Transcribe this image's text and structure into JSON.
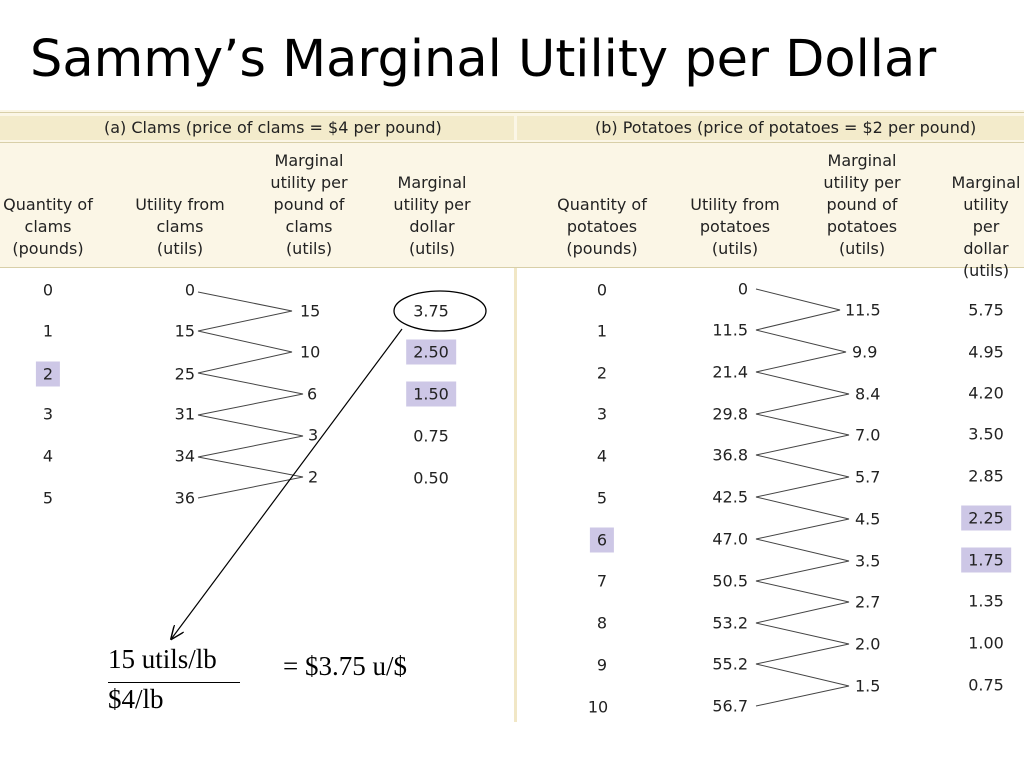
{
  "title": "Sammy’s Marginal Utility per Dollar",
  "clams": {
    "section_label": "(a) Clams (price of clams = $4 per pound)",
    "headers": [
      "Quantity of\nclams\n(pounds)",
      "Utility from\nclams\n(utils)",
      "Marginal\nutility per\npound of\nclams\n(utils)",
      "Marginal\nutility per\ndollar\n(utils)"
    ],
    "quantities": [
      "0",
      "1",
      "2",
      "3",
      "4",
      "5"
    ],
    "utility": [
      "0",
      "15",
      "25",
      "31",
      "34",
      "36"
    ],
    "mu_per_pound": [
      "15",
      "10",
      "6",
      "3",
      "2"
    ],
    "mu_per_dollar": [
      "3.75",
      "2.50",
      "1.50",
      "0.75",
      "0.50"
    ]
  },
  "potatoes": {
    "section_label": "(b) Potatoes (price of potatoes = $2 per pound)",
    "headers": [
      "Quantity of\npotatoes\n(pounds)",
      "Utility from\npotatoes\n(utils)",
      "Marginal\nutility per\npound of\npotatoes\n(utils)",
      "Marginal\nutility per\ndollar\n(utils)"
    ],
    "quantities": [
      "0",
      "1",
      "2",
      "3",
      "4",
      "5",
      "6",
      "7",
      "8",
      "9",
      "10"
    ],
    "utility": [
      "0",
      "11.5",
      "21.4",
      "29.8",
      "36.8",
      "42.5",
      "47.0",
      "50.5",
      "53.2",
      "55.2",
      "56.7"
    ],
    "mu_per_pound": [
      "11.5",
      "9.9",
      "8.4",
      "7.0",
      "5.7",
      "4.5",
      "3.5",
      "2.7",
      "2.0",
      "1.5"
    ],
    "mu_per_dollar": [
      "5.75",
      "4.95",
      "4.20",
      "3.50",
      "2.85",
      "2.25",
      "1.75",
      "1.35",
      "1.00",
      "0.75"
    ]
  },
  "annotation": {
    "numerator": "15 utils/lb",
    "denominator": "$4/lb",
    "result": "= $3.75 u/$"
  },
  "colors": {
    "highlight": "#cdc7e6",
    "header_band": "#fbf6e6"
  }
}
